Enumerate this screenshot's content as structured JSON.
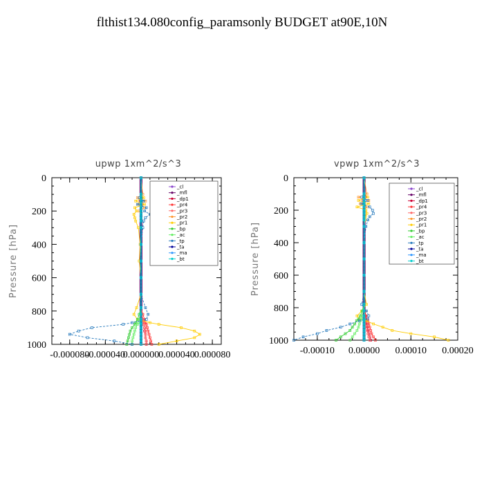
{
  "title": "flthist134.080config_paramsonly  BUDGET at90E,10N",
  "chart_data": [
    {
      "type": "line",
      "title": "upwp   1xm^2/s^3",
      "ylabel": "Pressure [hPa]",
      "xlim": [
        -0.0001,
        9e-05
      ],
      "ylim": [
        1000,
        0
      ],
      "xticks": [
        -8e-05,
        -4e-05,
        0.0,
        4e-05,
        8e-05
      ],
      "xtick_labels": [
        "-0.000080",
        "-0.000040",
        "0.000000",
        "0.000040",
        "0.000080"
      ],
      "yticks": [
        0,
        200,
        400,
        600,
        800,
        1000
      ],
      "pressure": [
        0,
        100,
        120,
        140,
        160,
        180,
        200,
        220,
        240,
        260,
        300,
        400,
        500,
        600,
        700,
        780,
        820,
        850,
        870,
        880,
        900,
        920,
        940,
        960,
        980,
        1000
      ],
      "legend": [
        "_cl",
        "_mfl",
        "_dp1",
        "_pr4",
        "_pr3",
        "_pr2",
        "_pr1",
        "_bp",
        "_ac",
        "_tp",
        "_ta",
        "_ma",
        "_bt"
      ],
      "series": [
        {
          "name": "_cl",
          "color": "#8844cc",
          "values": [
            0,
            0,
            0,
            0,
            0,
            0,
            0,
            0,
            0,
            0,
            0,
            0,
            0,
            0,
            0,
            0,
            0,
            0,
            0,
            0,
            0,
            0,
            0,
            0,
            0,
            0
          ]
        },
        {
          "name": "_mfl",
          "color": "#660066",
          "values": [
            0,
            0,
            0,
            0,
            0,
            0,
            0,
            0,
            0,
            0,
            0,
            0,
            0,
            0,
            0,
            0,
            0,
            0,
            0,
            0,
            0,
            0,
            0,
            0,
            0,
            0
          ]
        },
        {
          "name": "_dp1",
          "color": "#cc0033",
          "values": [
            0,
            0,
            1e-06,
            -1e-06,
            1e-06,
            0,
            0,
            0,
            0,
            0,
            0,
            0,
            0,
            0,
            0,
            0,
            1e-06,
            2e-06,
            3e-06,
            3e-06,
            4e-06,
            4e-06,
            5e-06,
            5e-06,
            6e-06,
            6e-06
          ]
        },
        {
          "name": "_pr4",
          "color": "#ff3333",
          "values": [
            0,
            0,
            0,
            0,
            0,
            0,
            0,
            0,
            0,
            0,
            0,
            0,
            0,
            0,
            0,
            0,
            2e-06,
            4e-06,
            5e-06,
            6e-06,
            7e-06,
            8e-06,
            9e-06,
            1e-05,
            1.1e-05,
            1.2e-05
          ]
        },
        {
          "name": "_pr3",
          "color": "#ff6666",
          "values": [
            0,
            0,
            0,
            0,
            0,
            0,
            0,
            0,
            0,
            0,
            0,
            0,
            0,
            0,
            0,
            0,
            1e-06,
            2e-06,
            3e-06,
            3e-06,
            4e-06,
            5e-06,
            5e-06,
            5e-06,
            6e-06,
            6e-06
          ]
        },
        {
          "name": "_pr2",
          "color": "#ff9933",
          "values": [
            0,
            2e-06,
            -4e-06,
            5e-06,
            -3e-06,
            4e-06,
            -2e-06,
            0,
            0,
            0,
            0,
            0,
            0,
            0,
            0,
            0,
            0,
            0,
            0,
            0,
            0,
            0,
            0,
            0,
            0,
            0
          ]
        },
        {
          "name": "_pr1",
          "color": "#ffcc00",
          "values": [
            0,
            0,
            3e-06,
            -6e-06,
            4e-06,
            -7e-06,
            -5e-06,
            -8e-06,
            -7e-06,
            -6e-06,
            -3e-06,
            -1e-06,
            -2e-06,
            0,
            0,
            -5e-06,
            -8e-06,
            -4e-06,
            1e-05,
            2e-05,
            4.5e-05,
            6e-05,
            6.6e-05,
            6e-05,
            4e-05,
            2e-05
          ]
        },
        {
          "name": "_bp",
          "color": "#33cc33",
          "values": [
            0,
            0,
            0,
            0,
            0,
            0,
            0,
            0,
            0,
            0,
            0,
            0,
            0,
            0,
            0,
            0,
            -2e-06,
            -4e-06,
            -6e-06,
            -7e-06,
            -1e-05,
            -1.2e-05,
            -1.3e-05,
            -1.4e-05,
            -1.5e-05,
            -1.6e-05
          ]
        },
        {
          "name": "_ac",
          "color": "#66ee66",
          "values": [
            0,
            0,
            0,
            0,
            0,
            0,
            0,
            0,
            0,
            0,
            0,
            0,
            0,
            0,
            0,
            0,
            -1e-06,
            -2e-06,
            -3e-06,
            -4e-06,
            -6e-06,
            -7e-06,
            -8e-06,
            -9e-06,
            -1e-05,
            -1e-05
          ]
        },
        {
          "name": "_tp",
          "color": "#2277bb",
          "values": [
            0,
            0,
            -2e-06,
            3e-06,
            -4e-06,
            6e-06,
            4e-06,
            1e-05,
            5e-06,
            3e-06,
            2e-06,
            0,
            0,
            0,
            0,
            5e-06,
            8e-06,
            6e-06,
            -1e-05,
            -2e-05,
            -5.5e-05,
            -7e-05,
            -8e-05,
            -6e-05,
            -3e-05,
            -1e-05
          ]
        },
        {
          "name": "_ta",
          "color": "#000099",
          "values": [
            0,
            0,
            0,
            0,
            0,
            0,
            0,
            0,
            0,
            0,
            0,
            0,
            0,
            0,
            0,
            0,
            0,
            0,
            0,
            0,
            0,
            0,
            0,
            0,
            0,
            0
          ]
        },
        {
          "name": "_ma",
          "color": "#3399ff",
          "values": [
            0,
            0,
            0,
            0,
            0,
            0,
            0,
            0,
            0,
            0,
            0,
            0,
            0,
            0,
            0,
            0,
            0,
            0,
            0,
            0,
            0,
            0,
            0,
            0,
            0,
            0
          ]
        },
        {
          "name": "_bt",
          "color": "#00cccc",
          "values": [
            0,
            0,
            0,
            0,
            0,
            0,
            0,
            0,
            0,
            0,
            0,
            0,
            0,
            0,
            0,
            0,
            0,
            0,
            0,
            0,
            0,
            0,
            0,
            0,
            0,
            0
          ]
        }
      ]
    },
    {
      "type": "line",
      "title": "vpwp   1xm^2/s^3",
      "ylabel": "Pressure [hPa]",
      "xlim": [
        -0.00015,
        0.0002
      ],
      "ylim": [
        1000,
        0
      ],
      "xticks": [
        -0.0001,
        0.0,
        0.0001,
        0.0002
      ],
      "xtick_labels": [
        "-0.00010",
        "0.00000",
        "0.00010",
        "0.00020"
      ],
      "yticks": [
        0,
        200,
        400,
        600,
        800,
        1000
      ],
      "pressure": [
        0,
        100,
        120,
        140,
        160,
        180,
        200,
        220,
        240,
        260,
        300,
        400,
        500,
        600,
        700,
        780,
        820,
        850,
        870,
        880,
        900,
        920,
        940,
        960,
        980,
        1000
      ],
      "legend": [
        "_cl",
        "_mfl",
        "_dp1",
        "_pr4",
        "_pr3",
        "_pr2",
        "_pr1",
        "_bp",
        "_ac",
        "_tp",
        "_ta",
        "_ma",
        "_bt"
      ],
      "series": [
        {
          "name": "_cl",
          "color": "#8844cc",
          "values": [
            0,
            0,
            0,
            0,
            0,
            0,
            0,
            0,
            0,
            0,
            0,
            0,
            0,
            0,
            0,
            0,
            0,
            0,
            0,
            0,
            0,
            0,
            0,
            0,
            0,
            0
          ]
        },
        {
          "name": "_mfl",
          "color": "#660066",
          "values": [
            0,
            0,
            0,
            0,
            0,
            0,
            0,
            0,
            0,
            0,
            0,
            0,
            0,
            0,
            0,
            0,
            0,
            0,
            0,
            0,
            0,
            0,
            0,
            0,
            0,
            0
          ]
        },
        {
          "name": "_dp1",
          "color": "#cc0033",
          "values": [
            0,
            0,
            2e-06,
            -2e-06,
            0,
            0,
            0,
            0,
            0,
            0,
            0,
            0,
            0,
            0,
            0,
            0,
            2e-06,
            3e-06,
            4e-06,
            5e-06,
            6e-06,
            7e-06,
            8e-06,
            1e-05,
            1.2e-05,
            1.4e-05
          ]
        },
        {
          "name": "_pr4",
          "color": "#ff3333",
          "values": [
            0,
            0,
            0,
            0,
            0,
            0,
            0,
            0,
            0,
            0,
            0,
            0,
            0,
            0,
            0,
            0,
            2e-06,
            4e-06,
            6e-06,
            8e-06,
            1e-05,
            1.2e-05,
            1.4e-05,
            1.6e-05,
            2e-05,
            2.4e-05
          ]
        },
        {
          "name": "_pr3",
          "color": "#ff6666",
          "values": [
            0,
            0,
            0,
            0,
            0,
            0,
            0,
            0,
            0,
            0,
            0,
            0,
            0,
            0,
            0,
            0,
            1e-06,
            2e-06,
            3e-06,
            4e-06,
            5e-06,
            6e-06,
            7e-06,
            8e-06,
            1e-05,
            1.2e-05
          ]
        },
        {
          "name": "_pr2",
          "color": "#ff9933",
          "values": [
            0,
            6e-06,
            -1.2e-05,
            1e-05,
            -8e-06,
            6e-06,
            0,
            0,
            0,
            0,
            0,
            0,
            0,
            0,
            0,
            0,
            0,
            0,
            0,
            0,
            0,
            0,
            0,
            0,
            0,
            0
          ]
        },
        {
          "name": "_pr1",
          "color": "#ffcc00",
          "values": [
            0,
            0,
            8e-06,
            -1.2e-05,
            1e-05,
            -1.5e-05,
            4e-06,
            6e-06,
            3e-06,
            2e-06,
            0,
            0,
            0,
            0,
            0,
            5e-06,
            -5e-06,
            -1.5e-05,
            -1e-05,
            5e-06,
            2e-05,
            4e-05,
            6e-05,
            0.0001,
            0.00015,
            0.00018
          ]
        },
        {
          "name": "_bp",
          "color": "#33cc33",
          "values": [
            0,
            0,
            0,
            0,
            0,
            0,
            0,
            0,
            0,
            0,
            0,
            0,
            0,
            0,
            0,
            0,
            -4e-06,
            -8e-06,
            -1.2e-05,
            -1.6e-05,
            -2e-05,
            -2.5e-05,
            -3e-05,
            -4e-05,
            -5e-05,
            -6e-05
          ]
        },
        {
          "name": "_ac",
          "color": "#66ee66",
          "values": [
            0,
            0,
            0,
            0,
            0,
            0,
            0,
            0,
            0,
            0,
            0,
            0,
            0,
            0,
            0,
            0,
            -2e-06,
            -4e-06,
            -6e-06,
            -8e-06,
            -1e-05,
            -1.2e-05,
            -1.5e-05,
            -2e-05,
            -2.5e-05,
            -3e-05
          ]
        },
        {
          "name": "_tp",
          "color": "#2277bb",
          "values": [
            0,
            0,
            -5e-06,
            8e-06,
            -6e-06,
            1.2e-05,
            1.8e-05,
            2e-05,
            1.2e-05,
            8e-06,
            4e-06,
            0,
            0,
            0,
            0,
            -5e-06,
            5e-06,
            1e-05,
            8e-06,
            -1e-05,
            -3e-05,
            -5e-05,
            -8e-05,
            -0.0001,
            -0.00013,
            -0.00015
          ]
        },
        {
          "name": "_ta",
          "color": "#000099",
          "values": [
            0,
            0,
            0,
            0,
            0,
            0,
            0,
            0,
            0,
            0,
            0,
            0,
            0,
            0,
            0,
            0,
            0,
            0,
            0,
            0,
            0,
            0,
            0,
            0,
            0,
            0
          ]
        },
        {
          "name": "_ma",
          "color": "#3399ff",
          "values": [
            0,
            0,
            0,
            0,
            0,
            0,
            0,
            0,
            0,
            0,
            0,
            0,
            0,
            0,
            0,
            0,
            0,
            0,
            0,
            0,
            0,
            0,
            0,
            0,
            0,
            0
          ]
        },
        {
          "name": "_bt",
          "color": "#00cccc",
          "values": [
            0,
            0,
            0,
            0,
            0,
            0,
            0,
            0,
            0,
            0,
            0,
            0,
            0,
            0,
            0,
            0,
            0,
            0,
            0,
            0,
            0,
            0,
            0,
            0,
            0,
            0
          ]
        }
      ]
    }
  ]
}
